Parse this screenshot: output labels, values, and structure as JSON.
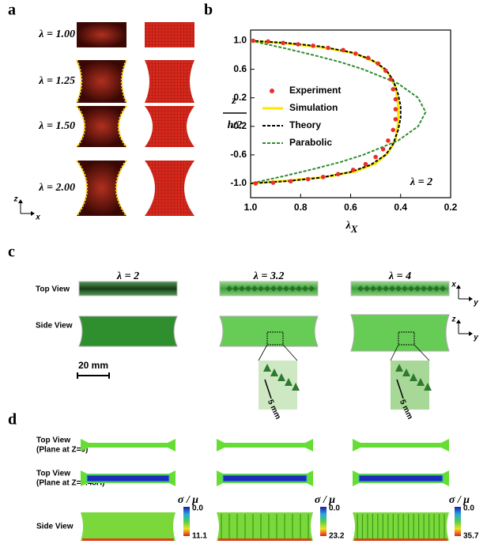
{
  "panel_labels": [
    "a",
    "b",
    "c",
    "d"
  ],
  "panel_a": {
    "lambda_labels": [
      "λ = 1.00",
      "λ = 1.25",
      "λ = 1.50",
      "λ = 2.00"
    ],
    "axis_z": "z",
    "axis_x": "x"
  },
  "chart_data": {
    "type": "line",
    "y_label": [
      "z",
      "h/2"
    ],
    "x_label": [
      "λ",
      "X"
    ],
    "annotation": "λ = 2",
    "xlim": [
      1.0,
      0.2
    ],
    "ylim": [
      -1.2,
      1.15
    ],
    "xticks": [
      {
        "value": 1.0,
        "label": "1.0"
      },
      0.8,
      0.6,
      0.4,
      0.2
    ],
    "yticks": [
      {
        "value": 1.0,
        "label": "1.0"
      },
      0.6,
      0.2,
      -0.2,
      -0.6,
      {
        "value": -1.0,
        "label": "-1.0"
      }
    ],
    "legend": "center-left",
    "series": [
      {
        "name": "Experiment",
        "color": "#e8302a",
        "style": "marker",
        "x": [
          0.99,
          0.93,
          0.87,
          0.81,
          0.75,
          0.69,
          0.63,
          0.58,
          0.53,
          0.49,
          0.46,
          0.44,
          0.43,
          0.42,
          0.42,
          0.42,
          0.43,
          0.45,
          0.47,
          0.5,
          0.54,
          0.59,
          0.65,
          0.71,
          0.77,
          0.84,
          0.91,
          0.98
        ],
        "values": [
          1.0,
          0.99,
          0.97,
          0.95,
          0.93,
          0.9,
          0.87,
          0.82,
          0.76,
          0.68,
          0.58,
          0.46,
          0.32,
          0.18,
          0.04,
          -0.1,
          -0.25,
          -0.4,
          -0.52,
          -0.63,
          -0.73,
          -0.81,
          -0.87,
          -0.91,
          -0.94,
          -0.97,
          -0.99,
          -1.0
        ]
      },
      {
        "name": "Simulation",
        "color": "#ffe600",
        "style": "solid",
        "x": [
          1.0,
          0.85,
          0.7,
          0.58,
          0.5,
          0.45,
          0.42,
          0.41,
          0.41,
          0.42,
          0.45,
          0.5,
          0.58,
          0.7,
          0.85,
          1.0
        ],
        "values": [
          1.0,
          0.96,
          0.9,
          0.82,
          0.7,
          0.55,
          0.35,
          0.1,
          -0.15,
          -0.38,
          -0.57,
          -0.72,
          -0.83,
          -0.91,
          -0.96,
          -1.0
        ]
      },
      {
        "name": "Theory",
        "color": "#000000",
        "style": "dashed",
        "x": [
          1.0,
          0.86,
          0.72,
          0.6,
          0.52,
          0.46,
          0.43,
          0.41,
          0.4,
          0.4,
          0.41,
          0.43,
          0.46,
          0.52,
          0.6,
          0.72,
          0.86,
          1.0
        ],
        "values": [
          1.0,
          0.97,
          0.92,
          0.84,
          0.74,
          0.6,
          0.45,
          0.25,
          0.08,
          -0.08,
          -0.25,
          -0.45,
          -0.6,
          -0.74,
          -0.84,
          -0.92,
          -0.97,
          -1.0
        ]
      },
      {
        "name": "Parabolic",
        "color": "#2e8b2e",
        "style": "dashed",
        "x": [
          1.0,
          0.87,
          0.75,
          0.64,
          0.55,
          0.41,
          0.33,
          0.3,
          0.33,
          0.41,
          0.55,
          0.64,
          0.75,
          0.87,
          1.0
        ],
        "values": [
          1.0,
          0.9,
          0.8,
          0.7,
          0.6,
          0.4,
          0.2,
          0.0,
          -0.2,
          -0.4,
          -0.6,
          -0.7,
          -0.8,
          -0.9,
          -1.0
        ]
      }
    ]
  },
  "panel_c": {
    "columns": [
      "λ = 2",
      "λ = 3.2",
      "λ = 4"
    ],
    "rows": [
      "Top View",
      "Side View"
    ],
    "scale_bar": "20 mm",
    "inset_scale": [
      "5 mm",
      "5 mm"
    ],
    "axes": [
      [
        "x",
        "y"
      ],
      [
        "z",
        "y"
      ]
    ]
  },
  "panel_d": {
    "rows": [
      [
        "Top View",
        "(Plane at Z=0)"
      ],
      [
        "Top View",
        "(Plane at Z=0.48H)"
      ],
      [
        "Side View"
      ]
    ],
    "colorbar_title": [
      "σ / μ",
      "σ / μ",
      "σ / μ"
    ],
    "colorbar_min": [
      "0.0",
      "0.0",
      "0.0"
    ],
    "colorbar_max": [
      "11.1",
      "23.2",
      "35.7"
    ]
  }
}
